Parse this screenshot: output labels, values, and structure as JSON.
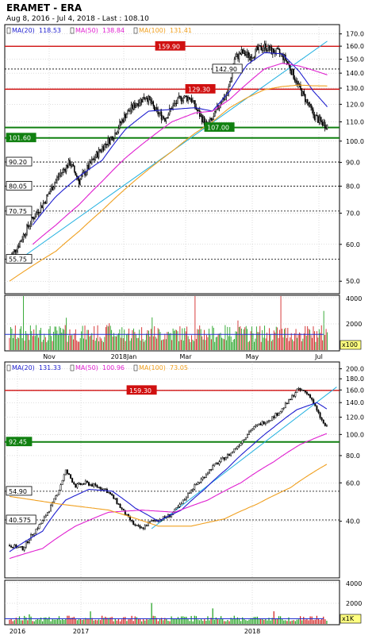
{
  "header": {
    "title": "ERAMET - ERA",
    "subtitle": "Aug 8, 2016 - Jul 4, 2018 - Last : 108.10"
  },
  "colors": {
    "candle": "#000000",
    "ma20": "#1f1fcf",
    "ma50": "#e020d0",
    "ma100": "#f0a020",
    "trend": "#20b0e0",
    "resistance": "#d01010",
    "support": "#108010",
    "volume_up": "#20a020",
    "volume_down": "#d02020",
    "volume_avg": "#2030d0",
    "grid": "#bbbbbb"
  },
  "chart_data": [
    {
      "type": "candlestick",
      "name": "daily",
      "ma_legend": [
        {
          "label": "MA(20)",
          "value": "118.53",
          "color": "#1f1fcf"
        },
        {
          "label": "MA(50)",
          "value": "138.84",
          "color": "#e020d0"
        },
        {
          "label": "MA(100)",
          "value": "131.41",
          "color": "#f0a020"
        }
      ],
      "y_scale": "log",
      "ylim": [
        47,
        178
      ],
      "y_ticks": [
        "50.0",
        "60.0",
        "70.0",
        "80.0",
        "90.0",
        "100.0",
        "110.0",
        "120.0",
        "130.0",
        "140.0",
        "150.0",
        "160.0",
        "170.0"
      ],
      "x_ticks": [
        "Nov",
        "2018Jan",
        "Mar",
        "May",
        "Jul"
      ],
      "levels": [
        {
          "label": "159.90",
          "value": 159.9,
          "style": "red"
        },
        {
          "label": "129.30",
          "value": 129.3,
          "style": "red"
        },
        {
          "label": "142.90",
          "value": 142.9,
          "style": "dotted"
        },
        {
          "label": "107.00",
          "value": 107.0,
          "style": "green"
        },
        {
          "label": "101.60",
          "value": 101.6,
          "style": "green"
        },
        {
          "label": "90.20",
          "value": 90.2,
          "style": "dotted"
        },
        {
          "label": "80.05",
          "value": 80.05,
          "style": "dotted"
        },
        {
          "label": "70.75",
          "value": 70.75,
          "style": "dotted"
        },
        {
          "label": "55.75",
          "value": 55.75,
          "style": "dotted"
        }
      ],
      "price_keypoints": [
        [
          0,
          56
        ],
        [
          8,
          60
        ],
        [
          18,
          67
        ],
        [
          30,
          74
        ],
        [
          42,
          84
        ],
        [
          52,
          90
        ],
        [
          60,
          82
        ],
        [
          68,
          88
        ],
        [
          80,
          97
        ],
        [
          90,
          103
        ],
        [
          100,
          114
        ],
        [
          110,
          121
        ],
        [
          118,
          125
        ],
        [
          126,
          116
        ],
        [
          134,
          112
        ],
        [
          140,
          118
        ],
        [
          148,
          124
        ],
        [
          156,
          124
        ],
        [
          162,
          116
        ],
        [
          170,
          108
        ],
        [
          176,
          112
        ],
        [
          182,
          122
        ],
        [
          188,
          126
        ],
        [
          194,
          150
        ],
        [
          200,
          155
        ],
        [
          208,
          152
        ],
        [
          214,
          157
        ],
        [
          220,
          160
        ],
        [
          226,
          156
        ],
        [
          232,
          155
        ],
        [
          238,
          150
        ],
        [
          244,
          140
        ],
        [
          250,
          130
        ],
        [
          256,
          122
        ],
        [
          262,
          114
        ],
        [
          268,
          110
        ],
        [
          274,
          108
        ]
      ],
      "ma20_keypoints": [
        [
          20,
          66
        ],
        [
          40,
          76
        ],
        [
          60,
          84
        ],
        [
          80,
          91
        ],
        [
          100,
          106
        ],
        [
          120,
          116
        ],
        [
          140,
          117
        ],
        [
          160,
          118
        ],
        [
          175,
          116
        ],
        [
          190,
          128
        ],
        [
          205,
          146
        ],
        [
          220,
          155
        ],
        [
          235,
          154
        ],
        [
          250,
          141
        ],
        [
          262,
          128
        ],
        [
          274,
          118.5
        ]
      ],
      "ma50_keypoints": [
        [
          20,
          60
        ],
        [
          40,
          66
        ],
        [
          60,
          73
        ],
        [
          80,
          82
        ],
        [
          100,
          92
        ],
        [
          120,
          101
        ],
        [
          140,
          110
        ],
        [
          160,
          115
        ],
        [
          175,
          116
        ],
        [
          190,
          123
        ],
        [
          205,
          133
        ],
        [
          220,
          143
        ],
        [
          235,
          147
        ],
        [
          250,
          145
        ],
        [
          262,
          142
        ],
        [
          274,
          138.8
        ]
      ],
      "ma100_keypoints": [
        [
          0,
          50
        ],
        [
          20,
          54
        ],
        [
          40,
          58
        ],
        [
          60,
          64
        ],
        [
          80,
          71
        ],
        [
          100,
          79
        ],
        [
          120,
          87
        ],
        [
          140,
          95
        ],
        [
          160,
          104
        ],
        [
          175,
          110
        ],
        [
          190,
          118
        ],
        [
          205,
          124
        ],
        [
          220,
          129
        ],
        [
          235,
          131
        ],
        [
          250,
          132
        ],
        [
          262,
          131.5
        ],
        [
          274,
          131.4
        ]
      ],
      "trend_keypoints": [
        [
          10,
          56
        ],
        [
          274,
          164
        ]
      ],
      "volume": {
        "ticks": [
          "2000",
          "4000"
        ],
        "unit_label": "x100",
        "max": 4000,
        "avg": 1200
      }
    },
    {
      "type": "candlestick",
      "name": "weekly",
      "ma_legend": [
        {
          "label": "MA(20)",
          "value": "131.33",
          "color": "#1f1fcf"
        },
        {
          "label": "MA(50)",
          "value": "100.96",
          "color": "#e020d0"
        },
        {
          "label": "MA(100)",
          "value": "73.05",
          "color": "#f0a020"
        }
      ],
      "y_scale": "log",
      "ylim": [
        22,
        215
      ],
      "y_ticks": [
        "40.0",
        "60.0",
        "80.0",
        "100.0",
        "120.0",
        "140.0",
        "160.0",
        "180.0",
        "200.0"
      ],
      "x_ticks": [
        "2016",
        "2017",
        "2018"
      ],
      "levels": [
        {
          "label": "159.30",
          "value": 159.3,
          "style": "red"
        },
        {
          "label": "92.45",
          "value": 92.45,
          "style": "green"
        },
        {
          "label": "54.90",
          "value": 54.9,
          "style": "dotted"
        },
        {
          "label": "40.575",
          "value": 40.575,
          "style": "dotted"
        }
      ],
      "price_keypoints": [
        [
          0,
          31
        ],
        [
          8,
          30
        ],
        [
          14,
          35
        ],
        [
          20,
          40
        ],
        [
          26,
          48
        ],
        [
          30,
          56
        ],
        [
          34,
          68
        ],
        [
          40,
          58
        ],
        [
          46,
          60
        ],
        [
          52,
          58
        ],
        [
          58,
          56
        ],
        [
          64,
          50
        ],
        [
          70,
          43
        ],
        [
          76,
          38
        ],
        [
          80,
          37
        ],
        [
          86,
          40
        ],
        [
          92,
          41
        ],
        [
          98,
          43
        ],
        [
          104,
          48
        ],
        [
          110,
          56
        ],
        [
          116,
          62
        ],
        [
          122,
          70
        ],
        [
          128,
          76
        ],
        [
          134,
          82
        ],
        [
          140,
          92
        ],
        [
          146,
          105
        ],
        [
          152,
          112
        ],
        [
          158,
          118
        ],
        [
          164,
          128
        ],
        [
          170,
          145
        ],
        [
          174,
          160
        ],
        [
          178,
          158
        ],
        [
          182,
          150
        ],
        [
          186,
          128
        ],
        [
          190,
          112
        ],
        [
          192,
          108
        ]
      ],
      "ma20_keypoints": [
        [
          0,
          29
        ],
        [
          20,
          36
        ],
        [
          34,
          50
        ],
        [
          48,
          56
        ],
        [
          62,
          55
        ],
        [
          76,
          46
        ],
        [
          90,
          40
        ],
        [
          104,
          45
        ],
        [
          118,
          56
        ],
        [
          132,
          70
        ],
        [
          146,
          88
        ],
        [
          160,
          108
        ],
        [
          174,
          130
        ],
        [
          186,
          140
        ],
        [
          192,
          131
        ]
      ],
      "ma50_keypoints": [
        [
          0,
          27
        ],
        [
          20,
          30
        ],
        [
          40,
          38
        ],
        [
          60,
          44
        ],
        [
          80,
          45
        ],
        [
          100,
          44
        ],
        [
          120,
          50
        ],
        [
          140,
          60
        ],
        [
          160,
          75
        ],
        [
          176,
          90
        ],
        [
          192,
          101
        ]
      ],
      "ma100_keypoints": [
        [
          0,
          52
        ],
        [
          30,
          48
        ],
        [
          60,
          45
        ],
        [
          90,
          38
        ],
        [
          110,
          38
        ],
        [
          130,
          41
        ],
        [
          150,
          48
        ],
        [
          170,
          57
        ],
        [
          192,
          73
        ]
      ],
      "trend_keypoints": [
        [
          86,
          37
        ],
        [
          198,
          165
        ]
      ],
      "volume": {
        "ticks": [
          "2000",
          "4000"
        ],
        "unit_label": "x1K",
        "max": 4000,
        "avg": 500
      }
    }
  ]
}
